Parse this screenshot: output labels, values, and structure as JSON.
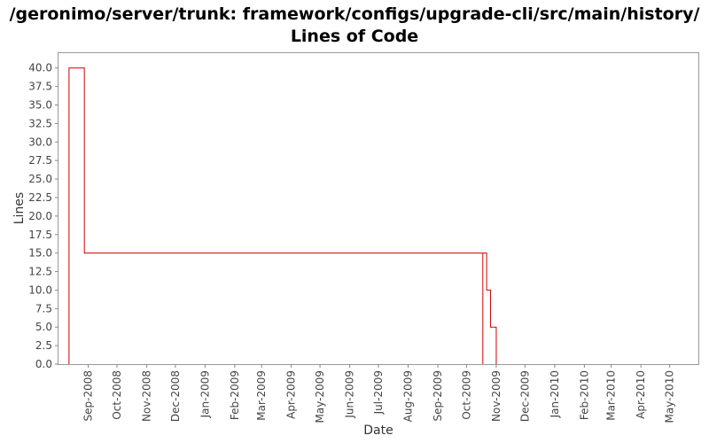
{
  "chart_data": {
    "type": "line",
    "title_lines": [
      "/geronimo/server/trunk: framework/configs/upgrade-cli/src/main/history/",
      "Lines of Code"
    ],
    "xlabel": "Date",
    "ylabel": "Lines",
    "step": true,
    "grid": false,
    "legend": "none",
    "line_color": "#cc0000",
    "xlim": [
      "2008-08-01",
      "2010-05-31"
    ],
    "ylim": [
      0,
      42
    ],
    "yticks": [
      "0.0",
      "2.5",
      "5.0",
      "7.5",
      "10.0",
      "12.5",
      "15.0",
      "17.5",
      "20.0",
      "22.5",
      "25.0",
      "27.5",
      "30.0",
      "32.5",
      "35.0",
      "37.5",
      "40.0"
    ],
    "xticks": [
      {
        "date": "2008-09-01",
        "label": "Sep-2008"
      },
      {
        "date": "2008-10-01",
        "label": "Oct-2008"
      },
      {
        "date": "2008-11-01",
        "label": "Nov-2008"
      },
      {
        "date": "2008-12-01",
        "label": "Dec-2008"
      },
      {
        "date": "2009-01-01",
        "label": "Jan-2009"
      },
      {
        "date": "2009-02-01",
        "label": "Feb-2009"
      },
      {
        "date": "2009-03-01",
        "label": "Mar-2009"
      },
      {
        "date": "2009-04-01",
        "label": "Apr-2009"
      },
      {
        "date": "2009-05-01",
        "label": "May-2009"
      },
      {
        "date": "2009-06-01",
        "label": "Jun-2009"
      },
      {
        "date": "2009-07-01",
        "label": "Jul-2009"
      },
      {
        "date": "2009-08-01",
        "label": "Aug-2009"
      },
      {
        "date": "2009-09-01",
        "label": "Sep-2009"
      },
      {
        "date": "2009-10-01",
        "label": "Oct-2009"
      },
      {
        "date": "2009-11-01",
        "label": "Nov-2009"
      },
      {
        "date": "2009-12-01",
        "label": "Dec-2009"
      },
      {
        "date": "2010-01-01",
        "label": "Jan-2010"
      },
      {
        "date": "2010-02-01",
        "label": "Feb-2010"
      },
      {
        "date": "2010-03-01",
        "label": "Mar-2010"
      },
      {
        "date": "2010-04-01",
        "label": "Apr-2010"
      },
      {
        "date": "2010-05-01",
        "label": "May-2010"
      }
    ],
    "series": [
      {
        "points": [
          {
            "x": "2008-08-12",
            "y": 0
          },
          {
            "x": "2008-08-12",
            "y": 40
          },
          {
            "x": "2008-08-28",
            "y": 15
          },
          {
            "x": "2009-10-18",
            "y": 0
          },
          {
            "x": "2009-10-18",
            "y": 15
          },
          {
            "x": "2009-10-22",
            "y": 10
          },
          {
            "x": "2009-10-26",
            "y": 5
          },
          {
            "x": "2009-11-01",
            "y": 0
          }
        ]
      }
    ]
  }
}
